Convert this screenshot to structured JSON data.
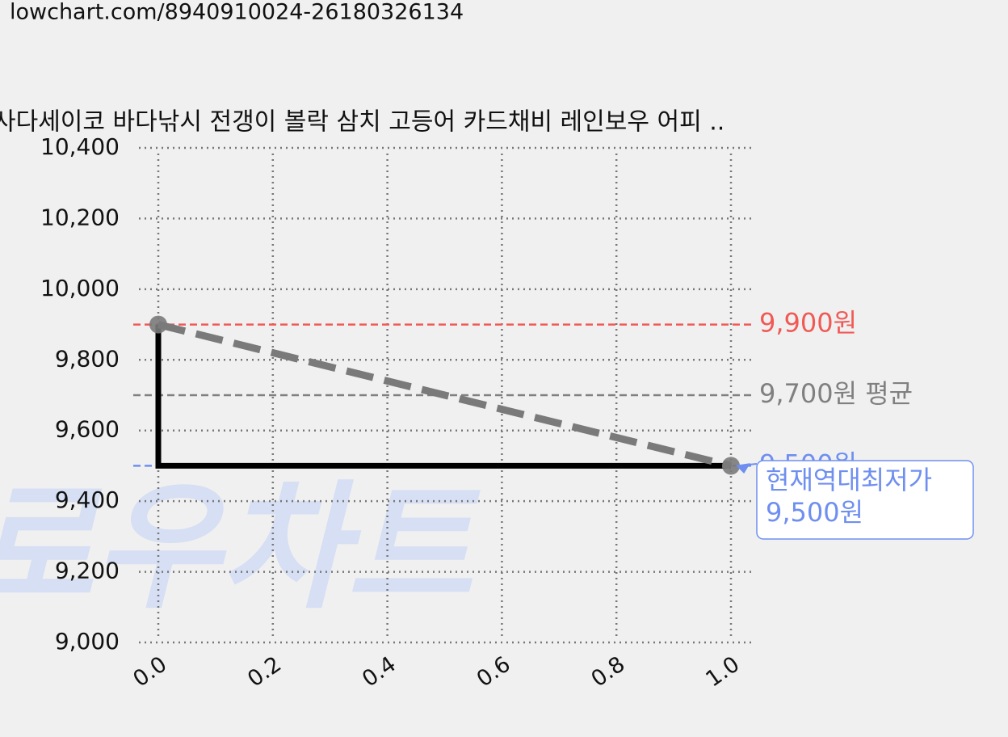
{
  "url": "lowchart.com/8940910024-26180326134",
  "chart_data": {
    "type": "line",
    "title": "사다세이코 바다낚시 전갱이 볼락 삼치 고등어 카드채비 레인보우 어피 ..",
    "watermark": "로우차트",
    "xlim": [
      0,
      1
    ],
    "xticks": [
      {
        "value": 0,
        "label": "0.0"
      },
      {
        "value": 0.2,
        "label": "0.2"
      },
      {
        "value": 0.4,
        "label": "0.4"
      },
      {
        "value": 0.6,
        "label": "0.6"
      },
      {
        "value": 0.8,
        "label": "0.8"
      },
      {
        "value": 1,
        "label": "1.0"
      }
    ],
    "ylim": [
      9000,
      10400
    ],
    "yticks": [
      {
        "value": 9000,
        "label": "9,000"
      },
      {
        "value": 9200,
        "label": "9,200"
      },
      {
        "value": 9400,
        "label": "9,400"
      },
      {
        "value": 9600,
        "label": "9,600"
      },
      {
        "value": 9800,
        "label": "9,800"
      },
      {
        "value": 10000,
        "label": "10,000"
      },
      {
        "value": 10200,
        "label": "10,200"
      },
      {
        "value": 10400,
        "label": "10,400"
      }
    ],
    "grid": true,
    "series": [
      {
        "style": "step",
        "color": "#000000",
        "x": [
          0,
          0,
          1
        ],
        "values": [
          9900,
          9500,
          9500
        ]
      },
      {
        "style": "dashed",
        "color": "#7a7a7a",
        "x": [
          0,
          1
        ],
        "values": [
          9900,
          9500
        ]
      }
    ],
    "reference_lines": [
      {
        "value": 9900,
        "label": "9,900원",
        "color": "#f05a55"
      },
      {
        "value": 9700,
        "label": "9,700원 평균",
        "color": "#808080"
      },
      {
        "value": 9500,
        "label": "9,500원",
        "color": "#6f8ff0"
      }
    ],
    "annotation": {
      "text": "현재역대최저가",
      "x": 1,
      "value": 9500,
      "value_label": "9,500원",
      "color": "#6f8ff0"
    }
  }
}
